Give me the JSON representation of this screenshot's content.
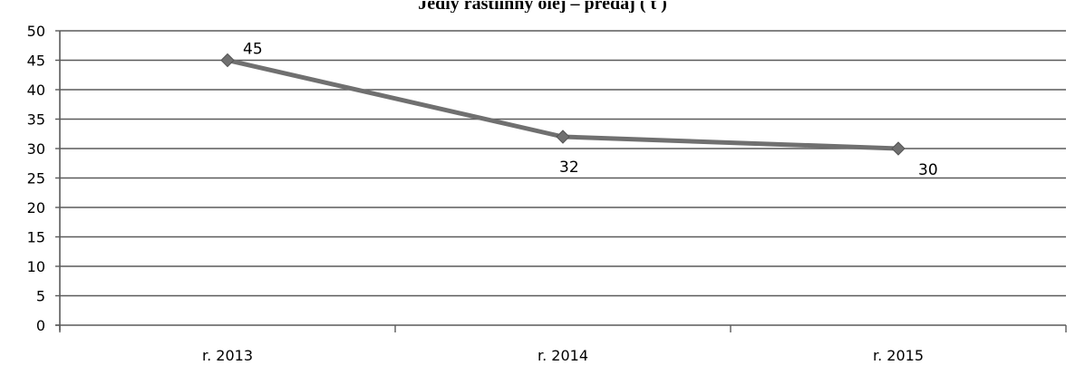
{
  "chart_data": {
    "type": "line",
    "title": "Jedlý rastlinný olej – predaj ( t )",
    "categories": [
      "r. 2013",
      "r. 2014",
      "r. 2015"
    ],
    "series": [
      {
        "values": [
          45,
          32,
          30
        ]
      }
    ],
    "data_labels": [
      "45",
      "32",
      "30"
    ],
    "y_ticks": [
      "0",
      "5",
      "10",
      "15",
      "20",
      "25",
      "30",
      "35",
      "40",
      "45",
      "50"
    ],
    "ylim": [
      0,
      50
    ],
    "y_step": 5,
    "grid": true,
    "legend": "none",
    "line_color": "#707070",
    "marker_color": "#707070",
    "marker": "diamond"
  }
}
